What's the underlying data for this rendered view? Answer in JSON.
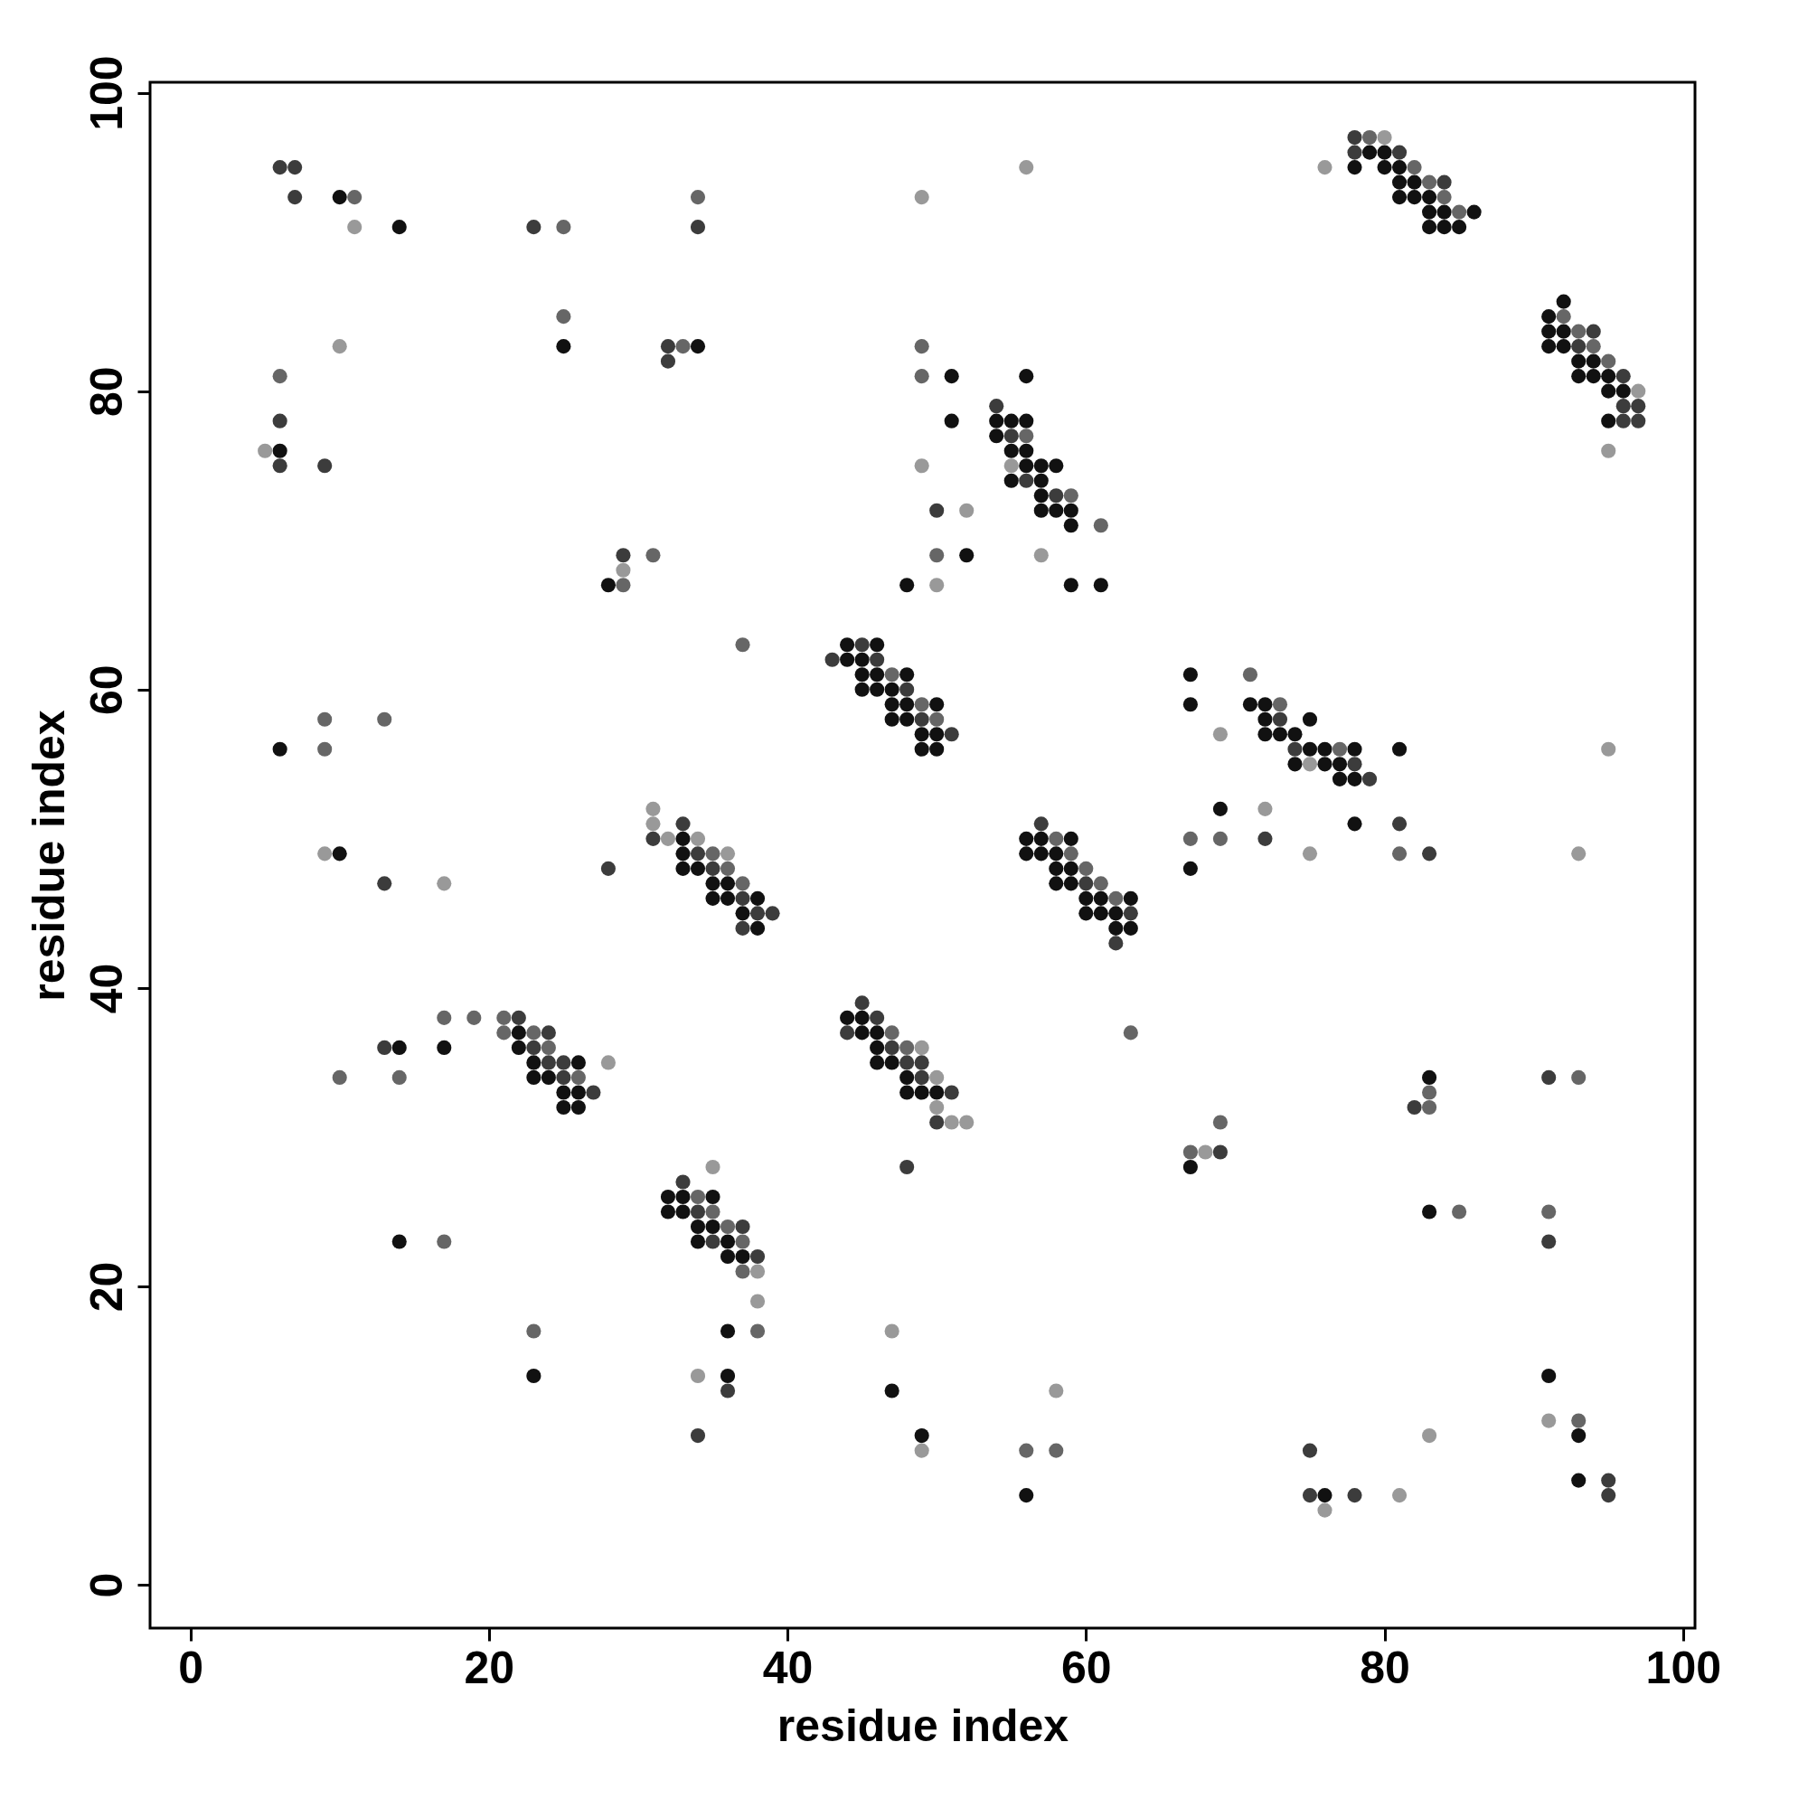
{
  "chart_data": {
    "type": "scatter",
    "xlabel": "residue index",
    "ylabel": "residue index",
    "xlim": [
      -2.7,
      100.8
    ],
    "ylim": [
      -2.9,
      100.7
    ],
    "xticks": [
      0,
      20,
      40,
      60,
      80,
      100
    ],
    "yticks": [
      0,
      20,
      40,
      60,
      80,
      100
    ],
    "marker": "circle",
    "series": [
      {
        "color": "#111111",
        "x": [
          10,
          14,
          25,
          34,
          6,
          28,
          6,
          10,
          14,
          17,
          22,
          22,
          23,
          26,
          23,
          24,
          25,
          26,
          25,
          26,
          14,
          23,
          33,
          33,
          33,
          34,
          35,
          36,
          35,
          36,
          38,
          37,
          38,
          32,
          33,
          35,
          32,
          33,
          34,
          35,
          34,
          36,
          36,
          37,
          36,
          36,
          47,
          49,
          56,
          44,
          45,
          45,
          46,
          46,
          46,
          47,
          48,
          48,
          49,
          50,
          44,
          46,
          44,
          45,
          45,
          46,
          48,
          45,
          46,
          47,
          47,
          48,
          50,
          47,
          48,
          49,
          50,
          49,
          50,
          51,
          51,
          52,
          48,
          54,
          55,
          56,
          54,
          55,
          56,
          56,
          57,
          58,
          55,
          57,
          57,
          57,
          58,
          59,
          59,
          56,
          59,
          61,
          56,
          57,
          59,
          56,
          57,
          58,
          58,
          59,
          58,
          59,
          60,
          61,
          63,
          60,
          61,
          62,
          62,
          63,
          67,
          67,
          71,
          72,
          72,
          72,
          73,
          74,
          75,
          75,
          76,
          78,
          74,
          76,
          77,
          77,
          78,
          81,
          78,
          69,
          67,
          67,
          83,
          83,
          91,
          93,
          93,
          76,
          79,
          80,
          78,
          80,
          81,
          81,
          82,
          81,
          82,
          83,
          83,
          84,
          86,
          83,
          84,
          85,
          92,
          91,
          91,
          92,
          91,
          92,
          93,
          94,
          93,
          94,
          95,
          95,
          96,
          95
        ],
        "values": [
          93,
          91,
          83,
          83,
          76,
          67,
          56,
          49,
          36,
          36,
          37,
          36,
          35,
          35,
          34,
          34,
          33,
          33,
          32,
          32,
          23,
          14,
          50,
          49,
          48,
          48,
          47,
          47,
          46,
          46,
          46,
          45,
          44,
          26,
          26,
          26,
          25,
          25,
          24,
          24,
          23,
          23,
          22,
          22,
          17,
          14,
          13,
          10,
          6,
          38,
          38,
          37,
          37,
          36,
          35,
          35,
          34,
          33,
          33,
          33,
          63,
          63,
          62,
          62,
          61,
          61,
          61,
          60,
          60,
          60,
          59,
          59,
          59,
          58,
          58,
          57,
          57,
          56,
          56,
          81,
          78,
          69,
          67,
          78,
          78,
          78,
          77,
          76,
          76,
          75,
          75,
          75,
          74,
          74,
          73,
          72,
          72,
          72,
          71,
          81,
          67,
          67,
          50,
          50,
          50,
          49,
          49,
          49,
          48,
          48,
          47,
          47,
          46,
          46,
          46,
          45,
          45,
          45,
          44,
          44,
          61,
          59,
          59,
          59,
          58,
          57,
          57,
          57,
          58,
          56,
          56,
          56,
          55,
          55,
          55,
          54,
          54,
          56,
          51,
          52,
          48,
          28,
          34,
          25,
          14,
          10,
          7,
          6,
          96,
          96,
          95,
          95,
          95,
          94,
          94,
          93,
          93,
          93,
          92,
          92,
          92,
          91,
          91,
          91,
          86,
          85,
          84,
          84,
          83,
          83,
          82,
          82,
          81,
          81,
          81,
          80,
          80,
          78
        ]
      },
      {
        "color": "#3c3c3c",
        "x": [
          6,
          7,
          7,
          23,
          34,
          32,
          32,
          6,
          6,
          9,
          29,
          13,
          28,
          13,
          22,
          24,
          23,
          24,
          25,
          25,
          27,
          33,
          31,
          34,
          35,
          37,
          38,
          39,
          37,
          33,
          34,
          37,
          35,
          38,
          36,
          34,
          48,
          45,
          46,
          44,
          47,
          48,
          49,
          49,
          51,
          50,
          43,
          45,
          46,
          48,
          49,
          51,
          50,
          54,
          55,
          56,
          58,
          57,
          60,
          63,
          62,
          73,
          74,
          78,
          79,
          81,
          83,
          72,
          69,
          82,
          91,
          91,
          95,
          95,
          75,
          75,
          78,
          78,
          78,
          81,
          84,
          94,
          93,
          96,
          96,
          97,
          96,
          97
        ],
        "values": [
          95,
          95,
          93,
          91,
          91,
          83,
          82,
          78,
          75,
          75,
          69,
          47,
          48,
          36,
          38,
          37,
          36,
          35,
          35,
          34,
          33,
          51,
          50,
          49,
          48,
          46,
          45,
          45,
          44,
          27,
          25,
          24,
          23,
          22,
          13,
          10,
          28,
          39,
          38,
          37,
          36,
          35,
          35,
          34,
          33,
          31,
          62,
          63,
          62,
          60,
          58,
          57,
          72,
          79,
          77,
          74,
          73,
          51,
          47,
          45,
          43,
          58,
          56,
          55,
          54,
          51,
          49,
          50,
          29,
          32,
          34,
          23,
          7,
          6,
          9,
          6,
          6,
          97,
          96,
          96,
          94,
          84,
          83,
          81,
          79,
          79,
          78,
          78
        ]
      },
      {
        "color": "#666666",
        "x": [
          11,
          25,
          34,
          25,
          33,
          6,
          29,
          31,
          37,
          9,
          9,
          13,
          10,
          14,
          17,
          19,
          21,
          21,
          23,
          24,
          26,
          17,
          23,
          35,
          36,
          37,
          34,
          35,
          36,
          37,
          37,
          38,
          56,
          58,
          47,
          48,
          47,
          49,
          50,
          49,
          49,
          50,
          56,
          59,
          61,
          58,
          59,
          60,
          61,
          62,
          63,
          71,
          73,
          77,
          81,
          69,
          67,
          67,
          69,
          83,
          83,
          85,
          93,
          91,
          93,
          79,
          82,
          83,
          84,
          85,
          92,
          93,
          94,
          95
        ],
        "values": [
          93,
          91,
          93,
          85,
          83,
          81,
          67,
          69,
          63,
          58,
          56,
          58,
          34,
          34,
          38,
          38,
          38,
          37,
          37,
          36,
          34,
          23,
          17,
          49,
          48,
          47,
          26,
          25,
          24,
          23,
          21,
          17,
          9,
          9,
          37,
          36,
          61,
          59,
          58,
          83,
          81,
          69,
          77,
          73,
          71,
          50,
          49,
          48,
          47,
          46,
          37,
          61,
          59,
          56,
          49,
          50,
          50,
          29,
          31,
          33,
          32,
          25,
          34,
          25,
          11,
          97,
          95,
          94,
          93,
          92,
          85,
          84,
          83,
          82
        ]
      },
      {
        "color": "#999999",
        "x": [
          11,
          10,
          5,
          29,
          9,
          17,
          28,
          31,
          31,
          32,
          34,
          36,
          35,
          38,
          38,
          34,
          47,
          49,
          58,
          49,
          50,
          50,
          51,
          52,
          49,
          49,
          52,
          50,
          55,
          57,
          56,
          69,
          75,
          75,
          72,
          68,
          91,
          76,
          81,
          83,
          93,
          95,
          80,
          76,
          97,
          95
        ],
        "values": [
          91,
          83,
          76,
          68,
          49,
          47,
          35,
          52,
          51,
          50,
          50,
          49,
          28,
          21,
          19,
          14,
          17,
          9,
          13,
          36,
          34,
          32,
          31,
          31,
          93,
          75,
          72,
          67,
          75,
          69,
          95,
          57,
          55,
          49,
          52,
          29,
          11,
          5,
          6,
          10,
          49,
          56,
          97,
          95,
          80,
          76
        ]
      }
    ]
  }
}
